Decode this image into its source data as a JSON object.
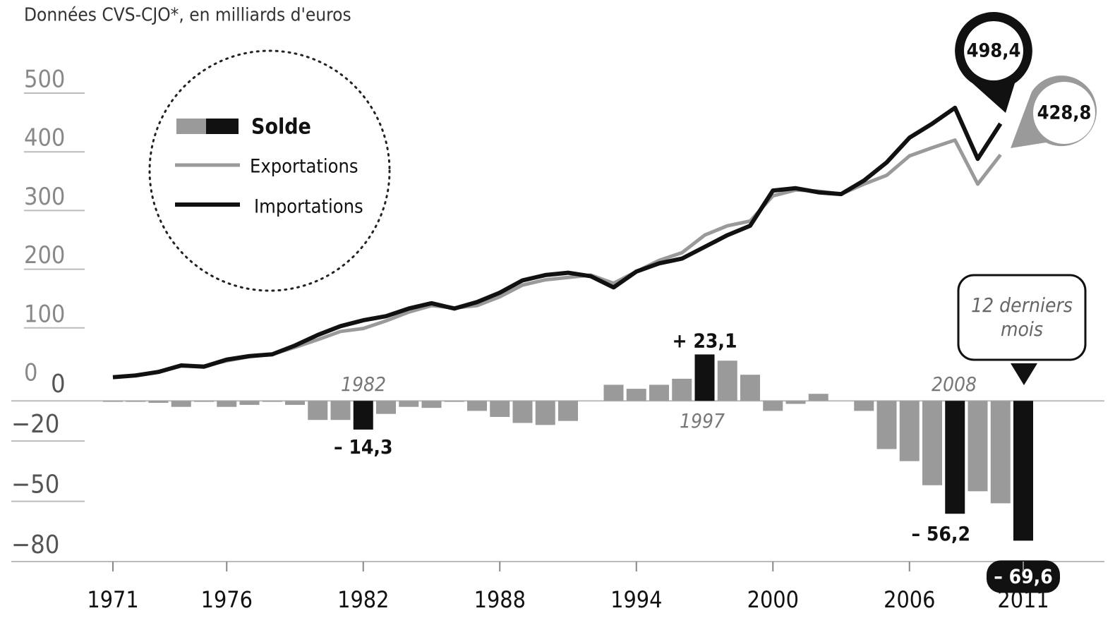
{
  "chart_data": [
    {
      "type": "line",
      "subtitle": "Données CVS-CJO*, en milliards d'euros",
      "x": [
        1971,
        1972,
        1973,
        1974,
        1975,
        1976,
        1977,
        1978,
        1979,
        1980,
        1981,
        1982,
        1983,
        1984,
        1985,
        1986,
        1987,
        1988,
        1989,
        1990,
        1991,
        1992,
        1993,
        1994,
        1995,
        1996,
        1997,
        1998,
        1999,
        2000,
        2001,
        2002,
        2003,
        2004,
        2005,
        2006,
        2007,
        2008,
        2009,
        2010
      ],
      "series": [
        {
          "name": "Exportations",
          "color": "#9a9a9a",
          "values": [
            16,
            19,
            25,
            35,
            35,
            44,
            51,
            55,
            67,
            80,
            94,
            99,
            112,
            127,
            138,
            134,
            138,
            153,
            173,
            182,
            186,
            190,
            176,
            196,
            215,
            228,
            258,
            274,
            282,
            325,
            335,
            333,
            328,
            345,
            360,
            393,
            407,
            420,
            345,
            395
          ]
        },
        {
          "name": "Importations",
          "color": "#111111",
          "values": [
            16,
            19,
            25,
            36,
            34,
            46,
            52,
            55,
            70,
            88,
            103,
            113,
            120,
            133,
            142,
            133,
            144,
            160,
            181,
            190,
            194,
            188,
            169,
            196,
            210,
            218,
            238,
            258,
            274,
            334,
            338,
            331,
            328,
            351,
            382,
            424,
            448,
            475,
            388,
            448
          ]
        }
      ],
      "ylim": [
        0,
        500
      ],
      "yticks": [
        0,
        100,
        200,
        300,
        400,
        500
      ],
      "annotations": [
        "498,4",
        "428,8"
      ]
    },
    {
      "type": "bar",
      "name": "Solde",
      "x": [
        1971,
        1972,
        1973,
        1974,
        1975,
        1976,
        1977,
        1978,
        1979,
        1980,
        1981,
        1982,
        1983,
        1984,
        1985,
        1986,
        1987,
        1988,
        1989,
        1990,
        1991,
        1992,
        1993,
        1994,
        1995,
        1996,
        1997,
        1998,
        1999,
        2000,
        2001,
        2002,
        2003,
        2004,
        2005,
        2006,
        2007,
        2008,
        2009,
        2010,
        2011
      ],
      "values": [
        -0.5,
        -0.5,
        -1,
        -3,
        -0.5,
        -3,
        -2,
        -0.5,
        -2,
        -9.5,
        -9.5,
        -14.3,
        -6.5,
        -3,
        -3.5,
        -0.5,
        -5,
        -8,
        -11,
        -12,
        -10,
        0,
        8,
        6,
        8,
        11,
        23.1,
        20,
        13,
        -5,
        -1.5,
        3.5,
        0,
        -5,
        -24,
        -30,
        -42,
        -56.2,
        -45,
        -51,
        -69.6
      ],
      "value_labels": [
        null,
        null,
        null,
        null,
        null,
        null,
        null,
        null,
        null,
        null,
        null,
        "– 14,3",
        null,
        null,
        null,
        null,
        null,
        null,
        null,
        null,
        null,
        null,
        null,
        null,
        null,
        null,
        "+ 23,1",
        null,
        null,
        null,
        null,
        null,
        null,
        null,
        null,
        null,
        null,
        "– 56,2",
        null,
        null,
        "– 69,6"
      ],
      "colors": [
        "#9a9a9a",
        "#111111"
      ],
      "highlight": [
        1982,
        1997,
        2008,
        2011
      ],
      "ylim": [
        -80,
        25
      ],
      "yticks": [
        {
          "value": 0,
          "label": "0"
        },
        {
          "value": -20,
          "label": "−20"
        },
        {
          "value": -50,
          "label": "−50"
        },
        {
          "value": -80,
          "label": "−80"
        }
      ],
      "xticks": [
        1971,
        1976,
        1982,
        1988,
        1994,
        2000,
        2006,
        2011
      ],
      "annotations": [
        "1982",
        "1997",
        "2008",
        "12 derniers",
        "mois"
      ]
    }
  ]
}
